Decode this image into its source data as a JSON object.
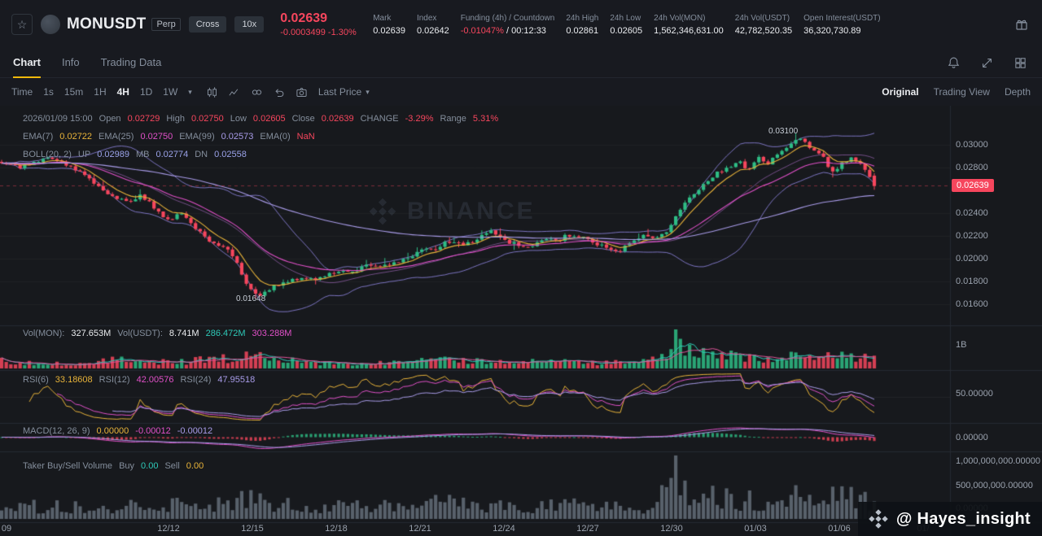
{
  "colors": {
    "up": "#2ebd85",
    "down": "#f6465d",
    "accent": "#f0b90b",
    "ema7": "#e8b339",
    "ema25": "#e050c8",
    "ema99": "#a89be8",
    "boll": "#8c82dc",
    "boll_mid": "#be78dc",
    "vol_ma1": "#2ec9b8",
    "vol_ma2": "#e0559a",
    "taker_bar": "#59626e",
    "text_gray": "#848e9c"
  },
  "header": {
    "symbol": "MONUSDT",
    "market_type": "Perp",
    "margin_mode": "Cross",
    "leverage": "10x",
    "last_price": "0.02639",
    "price_change": "-0.0003499 -1.30%",
    "stats": [
      {
        "label": "Mark",
        "value": "0.02639"
      },
      {
        "label": "Index",
        "value": "0.02642"
      },
      {
        "label": "Funding (4h) / Countdown",
        "value": "-0.01047%",
        "value2": " / 00:12:33"
      },
      {
        "label": "24h High",
        "value": "0.02861"
      },
      {
        "label": "24h Low",
        "value": "0.02605"
      },
      {
        "label": "24h Vol(MON)",
        "value": "1,562,346,631.00"
      },
      {
        "label": "24h Vol(USDT)",
        "value": "42,782,520.35"
      },
      {
        "label": "Open Interest(USDT)",
        "value": "36,320,730.89"
      }
    ]
  },
  "tabs": {
    "items": [
      "Chart",
      "Info",
      "Trading Data"
    ],
    "active": "Chart"
  },
  "toolbar": {
    "time_label": "Time",
    "intervals": [
      "1s",
      "15m",
      "1H",
      "4H",
      "1D",
      "1W"
    ],
    "active_interval": "4H",
    "price_source": "Last Price",
    "views": [
      "Original",
      "Trading View",
      "Depth"
    ],
    "active_view": "Original"
  },
  "legend_ohlc": {
    "datetime": "2026/01/09 15:00",
    "open_label": "Open",
    "open": "0.02729",
    "high_label": "High",
    "high": "0.02750",
    "low_label": "Low",
    "low": "0.02605",
    "close_label": "Close",
    "close": "0.02639",
    "change_label": "CHANGE",
    "change": "-3.29%",
    "range_label": "Range",
    "range": "5.31%"
  },
  "legend_ema": {
    "ema7_label": "EMA(7)",
    "ema7": "0.02722",
    "ema25_label": "EMA(25)",
    "ema25": "0.02750",
    "ema99_label": "EMA(99)",
    "ema99": "0.02573",
    "ema0_label": "EMA(0)",
    "ema0": "NaN"
  },
  "legend_boll": {
    "label": "BOLL(20, 2)",
    "up_label": "UP",
    "up": "0.02989",
    "mb_label": "MB",
    "mb": "0.02774",
    "dn_label": "DN",
    "dn": "0.02558"
  },
  "legend_vol": {
    "mon_label": "Vol(MON):",
    "mon": "327.653M",
    "usdt_label": "Vol(USDT):",
    "usdt": "8.741M",
    "ma1": "286.472M",
    "ma2": "303.288M"
  },
  "legend_rsi": {
    "r6_label": "RSI(6)",
    "r6": "33.18608",
    "r12_label": "RSI(12)",
    "r12": "42.00576",
    "r24_label": "RSI(24)",
    "r24": "47.95518"
  },
  "legend_macd": {
    "label": "MACD(12, 26, 9)",
    "macd": "0.00000",
    "dif": "-0.00012",
    "dea": "-0.00012"
  },
  "legend_taker": {
    "label": "Taker Buy/Sell Volume",
    "buy_label": "Buy",
    "buy": "0.00",
    "sell_label": "Sell",
    "sell": "0.00"
  },
  "axes": {
    "vol": "1B",
    "rsi": "50.00000",
    "macd": "0.00000",
    "taker": [
      "1,000,000,000.00000",
      "500,000,000.00000",
      "0.00000"
    ]
  },
  "watermark": {
    "center_text": "BINANCE",
    "badge_text": "@ Hayes_insight"
  },
  "chart_data": {
    "type": "candlestick",
    "symbol": "MONUSDT",
    "interval": "4H",
    "candle_count": 190,
    "last_price": 0.02639,
    "last_candle": {
      "open": 0.02729,
      "high": 0.0275,
      "low": 0.02605,
      "close": 0.02639
    },
    "price_axis_ticks": [
      {
        "label": "0.03000",
        "price": 0.03
      },
      {
        "label": "0.02800",
        "price": 0.028
      },
      {
        "label": "0.02400",
        "price": 0.024
      },
      {
        "label": "0.02200",
        "price": 0.022
      },
      {
        "label": "0.02000",
        "price": 0.02
      },
      {
        "label": "0.01800",
        "price": 0.018
      },
      {
        "label": "0.01600",
        "price": 0.016
      }
    ],
    "x_ticks": [
      "09",
      "12/12",
      "12/15",
      "12/18",
      "12/21",
      "12/24",
      "12/27",
      "12/30",
      "01/03",
      "01/06",
      "01/"
    ],
    "annotations": [
      {
        "text": "0.03100",
        "price": 0.031
      },
      {
        "text": "0.01648",
        "price": 0.01648
      }
    ],
    "price_keypoints": [
      [
        0,
        0.0285
      ],
      [
        0.02,
        0.028
      ],
      [
        0.045,
        0.0287
      ],
      [
        0.06,
        0.0289
      ],
      [
        0.08,
        0.028
      ],
      [
        0.1,
        0.0272
      ],
      [
        0.115,
        0.026
      ],
      [
        0.13,
        0.0253
      ],
      [
        0.15,
        0.025
      ],
      [
        0.16,
        0.0256
      ],
      [
        0.175,
        0.0245
      ],
      [
        0.19,
        0.0234
      ],
      [
        0.205,
        0.024
      ],
      [
        0.22,
        0.0228
      ],
      [
        0.235,
        0.0218
      ],
      [
        0.25,
        0.0211
      ],
      [
        0.262,
        0.0205
      ],
      [
        0.272,
        0.0193
      ],
      [
        0.282,
        0.0176
      ],
      [
        0.292,
        0.0167
      ],
      [
        0.3,
        0.017
      ],
      [
        0.315,
        0.0176
      ],
      [
        0.33,
        0.018
      ],
      [
        0.345,
        0.0184
      ],
      [
        0.36,
        0.0181
      ],
      [
        0.375,
        0.0186
      ],
      [
        0.39,
        0.019
      ],
      [
        0.405,
        0.0188
      ],
      [
        0.42,
        0.0196
      ],
      [
        0.435,
        0.0192
      ],
      [
        0.45,
        0.0196
      ],
      [
        0.465,
        0.0201
      ],
      [
        0.48,
        0.0206
      ],
      [
        0.5,
        0.021
      ],
      [
        0.515,
        0.0216
      ],
      [
        0.53,
        0.0212
      ],
      [
        0.545,
        0.0217
      ],
      [
        0.56,
        0.0224
      ],
      [
        0.575,
        0.0217
      ],
      [
        0.59,
        0.0212
      ],
      [
        0.605,
        0.0211
      ],
      [
        0.62,
        0.0218
      ],
      [
        0.635,
        0.0215
      ],
      [
        0.65,
        0.0221
      ],
      [
        0.665,
        0.0219
      ],
      [
        0.68,
        0.0214
      ],
      [
        0.695,
        0.0208
      ],
      [
        0.705,
        0.0205
      ],
      [
        0.72,
        0.0213
      ],
      [
        0.735,
        0.022
      ],
      [
        0.75,
        0.0218
      ],
      [
        0.762,
        0.0224
      ],
      [
        0.773,
        0.0236
      ],
      [
        0.785,
        0.025
      ],
      [
        0.8,
        0.0262
      ],
      [
        0.815,
        0.0272
      ],
      [
        0.83,
        0.028
      ],
      [
        0.845,
        0.0285
      ],
      [
        0.855,
        0.0278
      ],
      [
        0.868,
        0.0288
      ],
      [
        0.878,
        0.0283
      ],
      [
        0.89,
        0.0292
      ],
      [
        0.9,
        0.0298
      ],
      [
        0.912,
        0.0307
      ],
      [
        0.922,
        0.03
      ],
      [
        0.932,
        0.0293
      ],
      [
        0.942,
        0.0288
      ],
      [
        0.952,
        0.0276
      ],
      [
        0.962,
        0.0283
      ],
      [
        0.972,
        0.0288
      ],
      [
        0.982,
        0.0284
      ],
      [
        0.992,
        0.0277
      ],
      [
        1,
        0.0264
      ]
    ],
    "volume_keypoints": [
      [
        0,
        0.22
      ],
      [
        0.05,
        0.15
      ],
      [
        0.1,
        0.18
      ],
      [
        0.13,
        0.25
      ],
      [
        0.17,
        0.2
      ],
      [
        0.2,
        0.18
      ],
      [
        0.23,
        0.25
      ],
      [
        0.26,
        0.3
      ],
      [
        0.28,
        0.38
      ],
      [
        0.3,
        0.3
      ],
      [
        0.35,
        0.18
      ],
      [
        0.4,
        0.15
      ],
      [
        0.45,
        0.2
      ],
      [
        0.5,
        0.22
      ],
      [
        0.55,
        0.25
      ],
      [
        0.6,
        0.18
      ],
      [
        0.65,
        0.2
      ],
      [
        0.7,
        0.16
      ],
      [
        0.74,
        0.2
      ],
      [
        0.765,
        0.35
      ],
      [
        0.773,
        0.95
      ],
      [
        0.78,
        0.5
      ],
      [
        0.8,
        0.4
      ],
      [
        0.82,
        0.45
      ],
      [
        0.84,
        0.38
      ],
      [
        0.86,
        0.3
      ],
      [
        0.88,
        0.35
      ],
      [
        0.9,
        0.42
      ],
      [
        0.92,
        0.32
      ],
      [
        0.94,
        0.3
      ],
      [
        0.96,
        0.38
      ],
      [
        0.98,
        0.3
      ],
      [
        1,
        0.35
      ]
    ],
    "taker_keypoints": [
      [
        0,
        0.25
      ],
      [
        0.1,
        0.2
      ],
      [
        0.2,
        0.25
      ],
      [
        0.28,
        0.35
      ],
      [
        0.35,
        0.2
      ],
      [
        0.45,
        0.25
      ],
      [
        0.5,
        0.3
      ],
      [
        0.55,
        0.25
      ],
      [
        0.6,
        0.2
      ],
      [
        0.65,
        0.25
      ],
      [
        0.7,
        0.2
      ],
      [
        0.75,
        0.25
      ],
      [
        0.773,
        0.95
      ],
      [
        0.79,
        0.45
      ],
      [
        0.82,
        0.4
      ],
      [
        0.85,
        0.35
      ],
      [
        0.88,
        0.3
      ],
      [
        0.9,
        0.45
      ],
      [
        0.93,
        0.35
      ],
      [
        0.96,
        0.4
      ],
      [
        1,
        0.35
      ]
    ]
  }
}
